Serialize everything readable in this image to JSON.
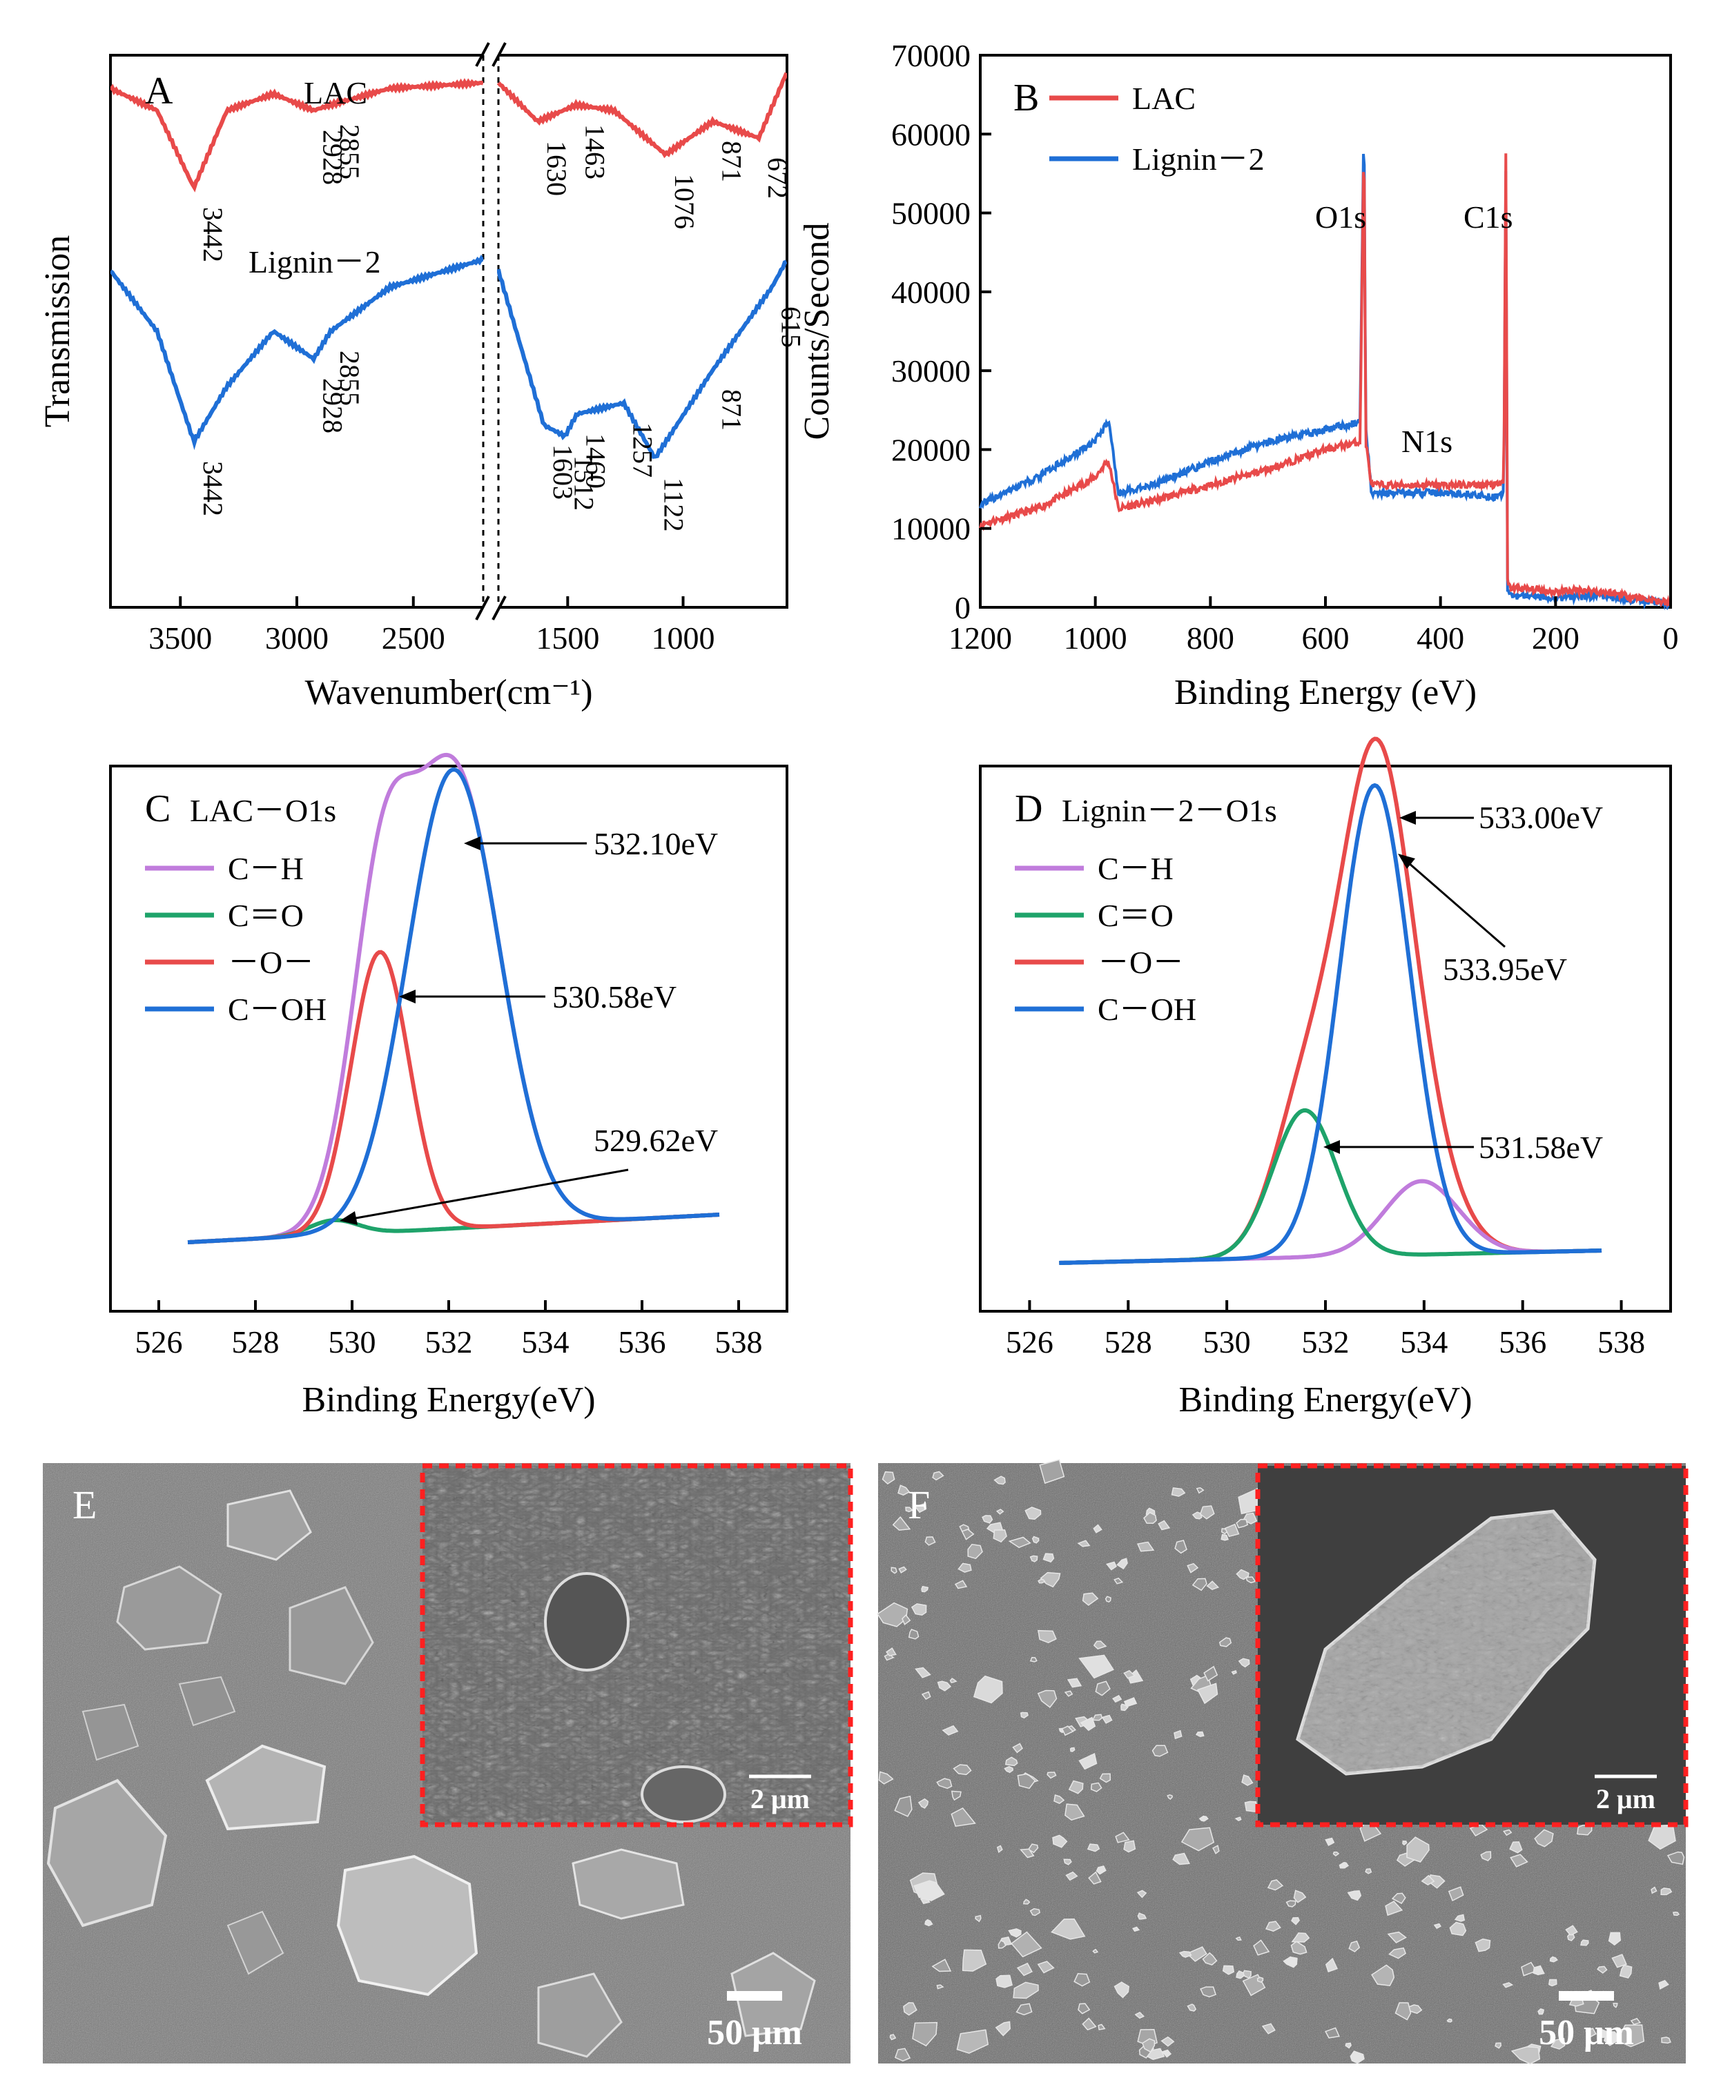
{
  "chart_data": [
    {
      "panel": "A",
      "type": "line",
      "xlabel": "Wavenumber(cm⁻¹)",
      "ylabel": "Transmission",
      "xlim": [
        4000,
        500
      ],
      "axis_break": [
        2200,
        1800
      ],
      "x_ticks": [
        "3500",
        "3000",
        "2500",
        "1500",
        "1000"
      ],
      "series": [
        {
          "name": "LAC",
          "color": "#e84a4a",
          "x": [
            4000,
            3800,
            3600,
            3442,
            3300,
            3100,
            2928,
            2855,
            2600,
            2200,
            1800,
            1630,
            1463,
            1300,
            1076,
            871,
            672,
            550
          ],
          "values": [
            0.95,
            0.94,
            0.9,
            0.76,
            0.9,
            0.93,
            0.9,
            0.91,
            0.94,
            0.95,
            0.95,
            0.88,
            0.91,
            0.9,
            0.82,
            0.88,
            0.85,
            0.97
          ],
          "peaks": [
            "3442",
            "2928",
            "2855",
            "1630",
            "1463",
            "1076",
            "871",
            "672"
          ]
        },
        {
          "name": "Lignin－2",
          "color": "#1f6fd6",
          "x": [
            4000,
            3800,
            3600,
            3442,
            3300,
            3100,
            2928,
            2855,
            2600,
            2200,
            1800,
            1603,
            1512,
            1460,
            1257,
            1122,
            871,
            615,
            550
          ],
          "values": [
            0.62,
            0.61,
            0.5,
            0.3,
            0.4,
            0.5,
            0.45,
            0.5,
            0.58,
            0.63,
            0.61,
            0.33,
            0.31,
            0.35,
            0.37,
            0.27,
            0.43,
            0.58,
            0.63
          ],
          "peaks": [
            "3442",
            "2928",
            "2855",
            "1603",
            "1512",
            "1460",
            "1257",
            "1122",
            "871",
            "615"
          ]
        }
      ]
    },
    {
      "panel": "B",
      "type": "line",
      "xlabel": "Binding Energy (eV)",
      "ylabel": "Counts/Second",
      "xlim": [
        1200,
        0
      ],
      "ylim": [
        0,
        70000
      ],
      "x_ticks": [
        "1200",
        "1000",
        "800",
        "600",
        "400",
        "200",
        "0"
      ],
      "y_ticks": [
        "0",
        "10000",
        "20000",
        "30000",
        "40000",
        "50000",
        "60000",
        "70000"
      ],
      "series": [
        {
          "name": "LAC",
          "color": "#e84a4a",
          "x": [
            1200,
            1100,
            1000,
            980,
            975,
            960,
            900,
            800,
            700,
            600,
            540,
            533,
            530,
            520,
            400,
            300,
            290,
            286,
            284,
            280,
            200,
            150,
            100,
            0
          ],
          "values": [
            10500,
            12500,
            16500,
            18500,
            18000,
            12500,
            13500,
            15500,
            17500,
            20000,
            21000,
            61000,
            21000,
            15500,
            15500,
            15500,
            16000,
            63000,
            3500,
            2500,
            2000,
            2200,
            1800,
            500
          ]
        },
        {
          "name": "Lignin－2",
          "color": "#1f6fd6",
          "x": [
            1200,
            1100,
            1000,
            980,
            975,
            960,
            900,
            800,
            700,
            600,
            540,
            533,
            530,
            520,
            400,
            300,
            290,
            286,
            284,
            280,
            200,
            150,
            100,
            0
          ],
          "values": [
            13000,
            16500,
            21000,
            23500,
            23000,
            14500,
            15500,
            18500,
            21000,
            22500,
            23500,
            63000,
            23000,
            14500,
            14500,
            14000,
            14500,
            61000,
            2000,
            1500,
            1200,
            1400,
            1200,
            500
          ]
        }
      ],
      "annotations": [
        {
          "text": "O1s",
          "x": 533
        },
        {
          "text": "C1s",
          "x": 285
        },
        {
          "text": "N1s",
          "x": 400
        }
      ]
    },
    {
      "panel": "C",
      "title": "LAC－O1s",
      "type": "line",
      "xlabel": "Binding Energy(eV)",
      "xlim": [
        525,
        539
      ],
      "x_ticks": [
        "526",
        "528",
        "530",
        "532",
        "534",
        "536",
        "538"
      ],
      "series": [
        {
          "name": "C－H",
          "color": "#c07cdc",
          "kind": "envelope"
        },
        {
          "name": "C＝O",
          "color": "#1ea36a",
          "center": 529.62,
          "height": 0.03,
          "sigma": 0.5
        },
        {
          "name": "－O－",
          "color": "#e84a4a",
          "center": 530.58,
          "height": 0.58,
          "sigma": 0.6
        },
        {
          "name": "C－OH",
          "color": "#1f6fd6",
          "center": 532.1,
          "height": 0.95,
          "sigma": 0.95
        }
      ],
      "annotations": [
        "532.10eV",
        "530.58eV",
        "529.62eV"
      ]
    },
    {
      "panel": "D",
      "title": "Lignin－2－O1s",
      "type": "line",
      "xlabel": "Binding Energy(eV)",
      "xlim": [
        525,
        539
      ],
      "x_ticks": [
        "526",
        "528",
        "530",
        "532",
        "534",
        "536",
        "538"
      ],
      "series": [
        {
          "name": "C－H",
          "color": "#c07cdc",
          "center": 533.95,
          "height": 0.15,
          "sigma": 0.75
        },
        {
          "name": "C＝O",
          "color": "#1ea36a",
          "center": 531.58,
          "height": 0.3,
          "sigma": 0.65
        },
        {
          "name": "－O－",
          "color": "#e84a4a",
          "kind": "envelope"
        },
        {
          "name": "C－OH",
          "color": "#1f6fd6",
          "center": 533.0,
          "height": 0.96,
          "sigma": 0.72
        }
      ],
      "annotations": [
        "533.00eV",
        "533.95eV",
        "531.58eV"
      ]
    }
  ],
  "images": {
    "E": {
      "label": "E",
      "inset_scale": "2 μm",
      "scale": "50 μm"
    },
    "F": {
      "label": "F",
      "inset_scale": "2 μm",
      "scale": "50 μm"
    }
  },
  "labels": {
    "A": "A",
    "B": "B",
    "C": "C",
    "D": "D"
  }
}
